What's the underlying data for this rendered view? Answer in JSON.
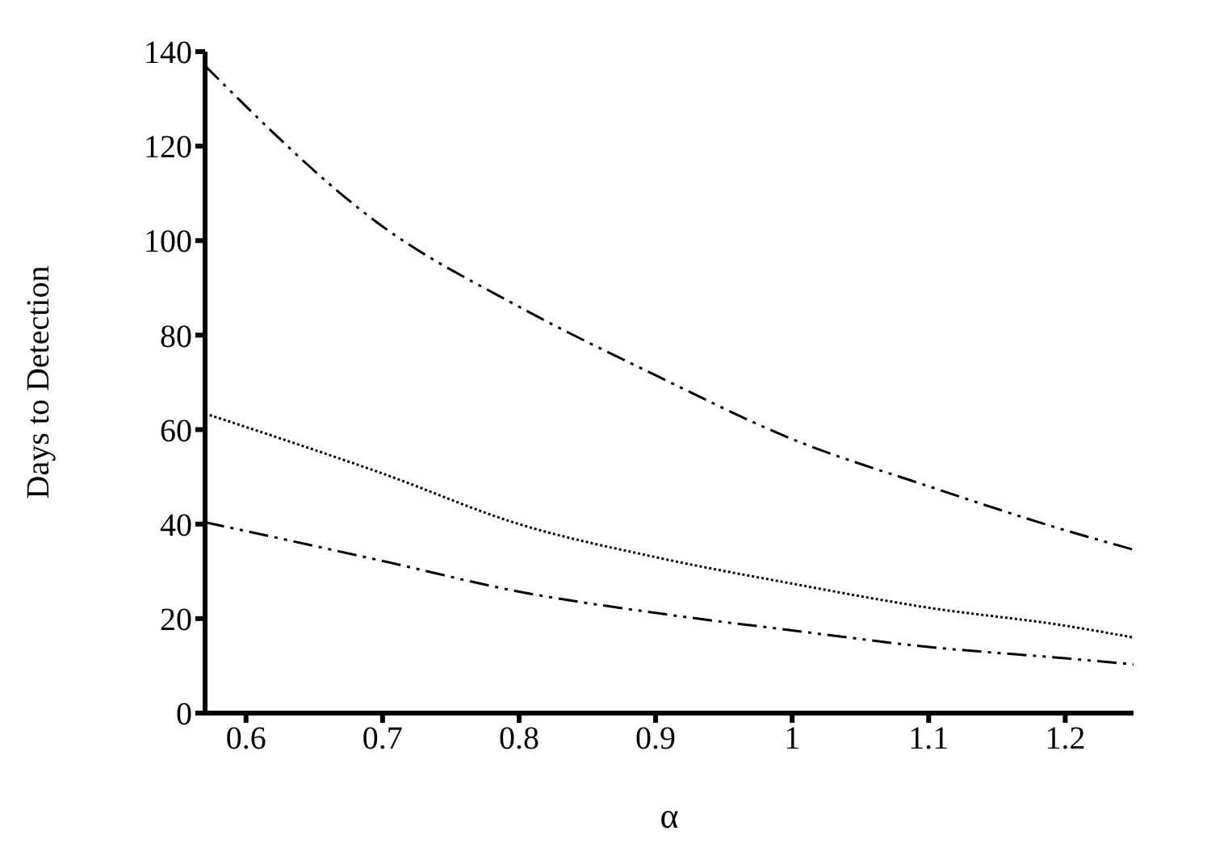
{
  "chart_data": {
    "type": "line",
    "xlabel": "α",
    "ylabel": "Days to Detection",
    "x": [
      0.57,
      0.7,
      0.8,
      0.9,
      1.0,
      1.1,
      1.2,
      1.25
    ],
    "series": [
      {
        "color": "#000000",
        "line_style": "dashed",
        "values": [
          137,
          103,
          86,
          71.5,
          58,
          48,
          38.7,
          34.6
        ]
      },
      {
        "color": "#000000",
        "line_style": "dotted",
        "values": [
          63.4,
          50.7,
          40,
          33,
          27.4,
          22.3,
          18.5,
          16
        ]
      },
      {
        "color": "#000000",
        "line_style": "dashed",
        "values": [
          40.4,
          32.2,
          25.7,
          21.2,
          17.5,
          14,
          11.6,
          10.3
        ]
      }
    ],
    "xlim": [
      0.57,
      1.25
    ],
    "xticks": [
      0.6,
      0.7,
      0.8,
      0.9,
      1,
      1.1,
      1.2
    ],
    "ylim": [
      0,
      140
    ],
    "yticks": [
      0,
      20,
      40,
      60,
      80,
      100,
      120,
      140
    ],
    "grid": false,
    "legend": false,
    "marker": "none"
  }
}
